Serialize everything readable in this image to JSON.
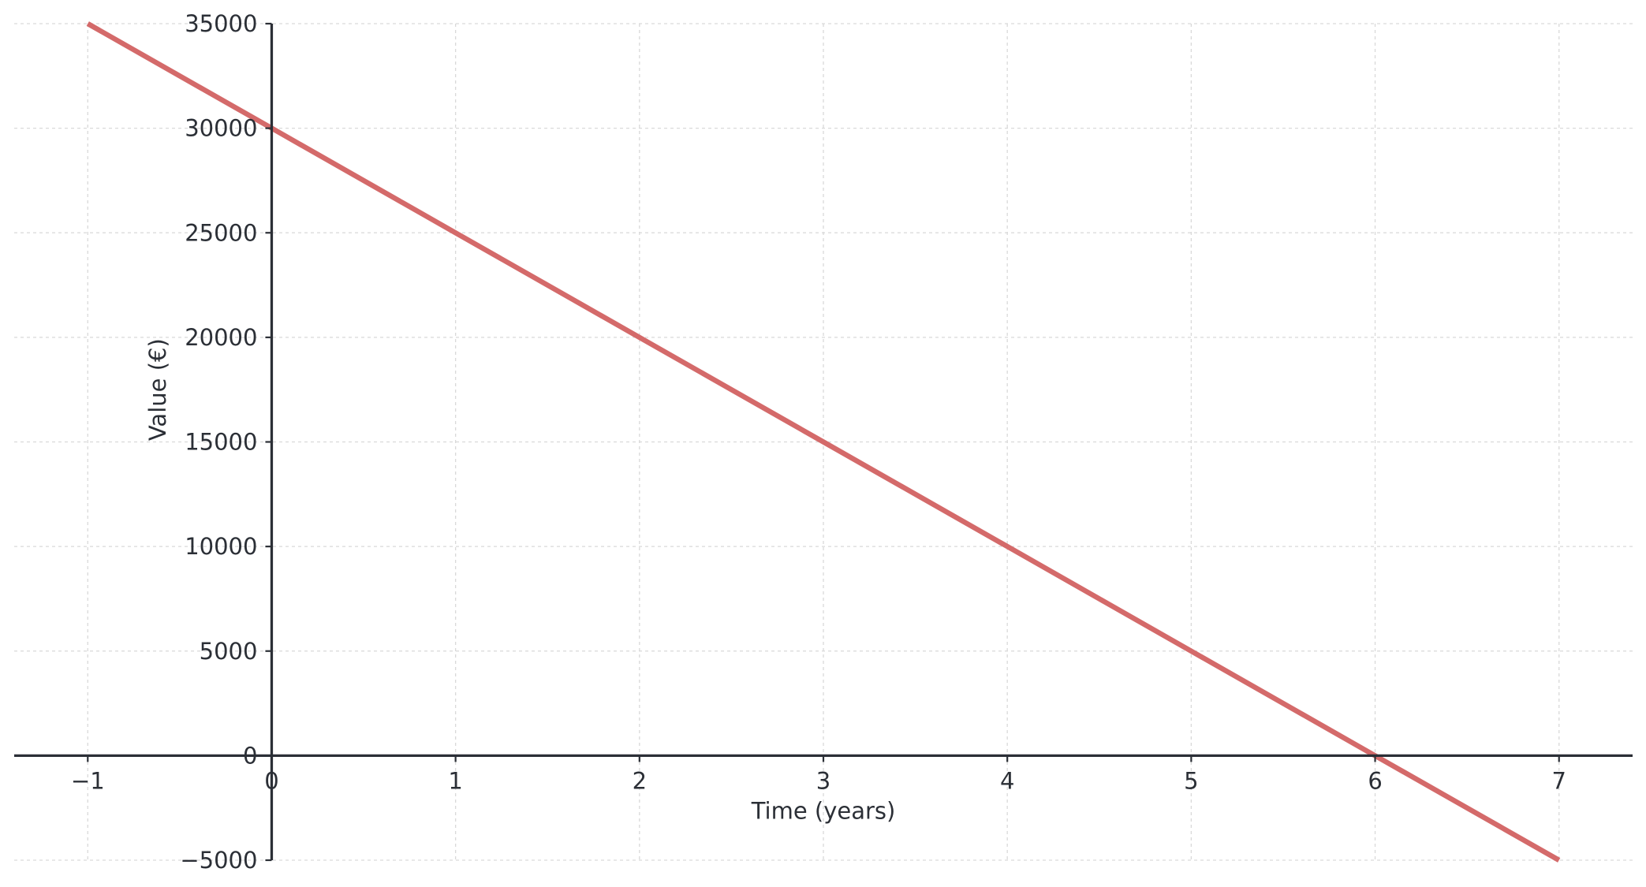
{
  "chart_data": {
    "type": "line",
    "xlabel": "Time (years)",
    "ylabel": "Value (€)",
    "xlim": [
      -1.4,
      7.4
    ],
    "ylim": [
      -5000,
      35000
    ],
    "x_ticks": [
      -1,
      0,
      1,
      2,
      3,
      4,
      5,
      6,
      7
    ],
    "y_ticks": [
      -5000,
      0,
      5000,
      10000,
      15000,
      20000,
      25000,
      30000,
      35000
    ],
    "x_tick_labels": [
      "−1",
      "0",
      "1",
      "2",
      "3",
      "4",
      "5",
      "6",
      "7"
    ],
    "y_tick_labels": [
      "−5000",
      "0",
      "5000",
      "10000",
      "15000",
      "20000",
      "25000",
      "30000",
      "35000"
    ],
    "grid": true,
    "series": [
      {
        "color": "#d46a6a",
        "x": [
          -1,
          0,
          1,
          2,
          3,
          4,
          5,
          6,
          7
        ],
        "y": [
          35000,
          30000,
          25000,
          20000,
          15000,
          10000,
          5000,
          0,
          -5000
        ]
      }
    ]
  }
}
